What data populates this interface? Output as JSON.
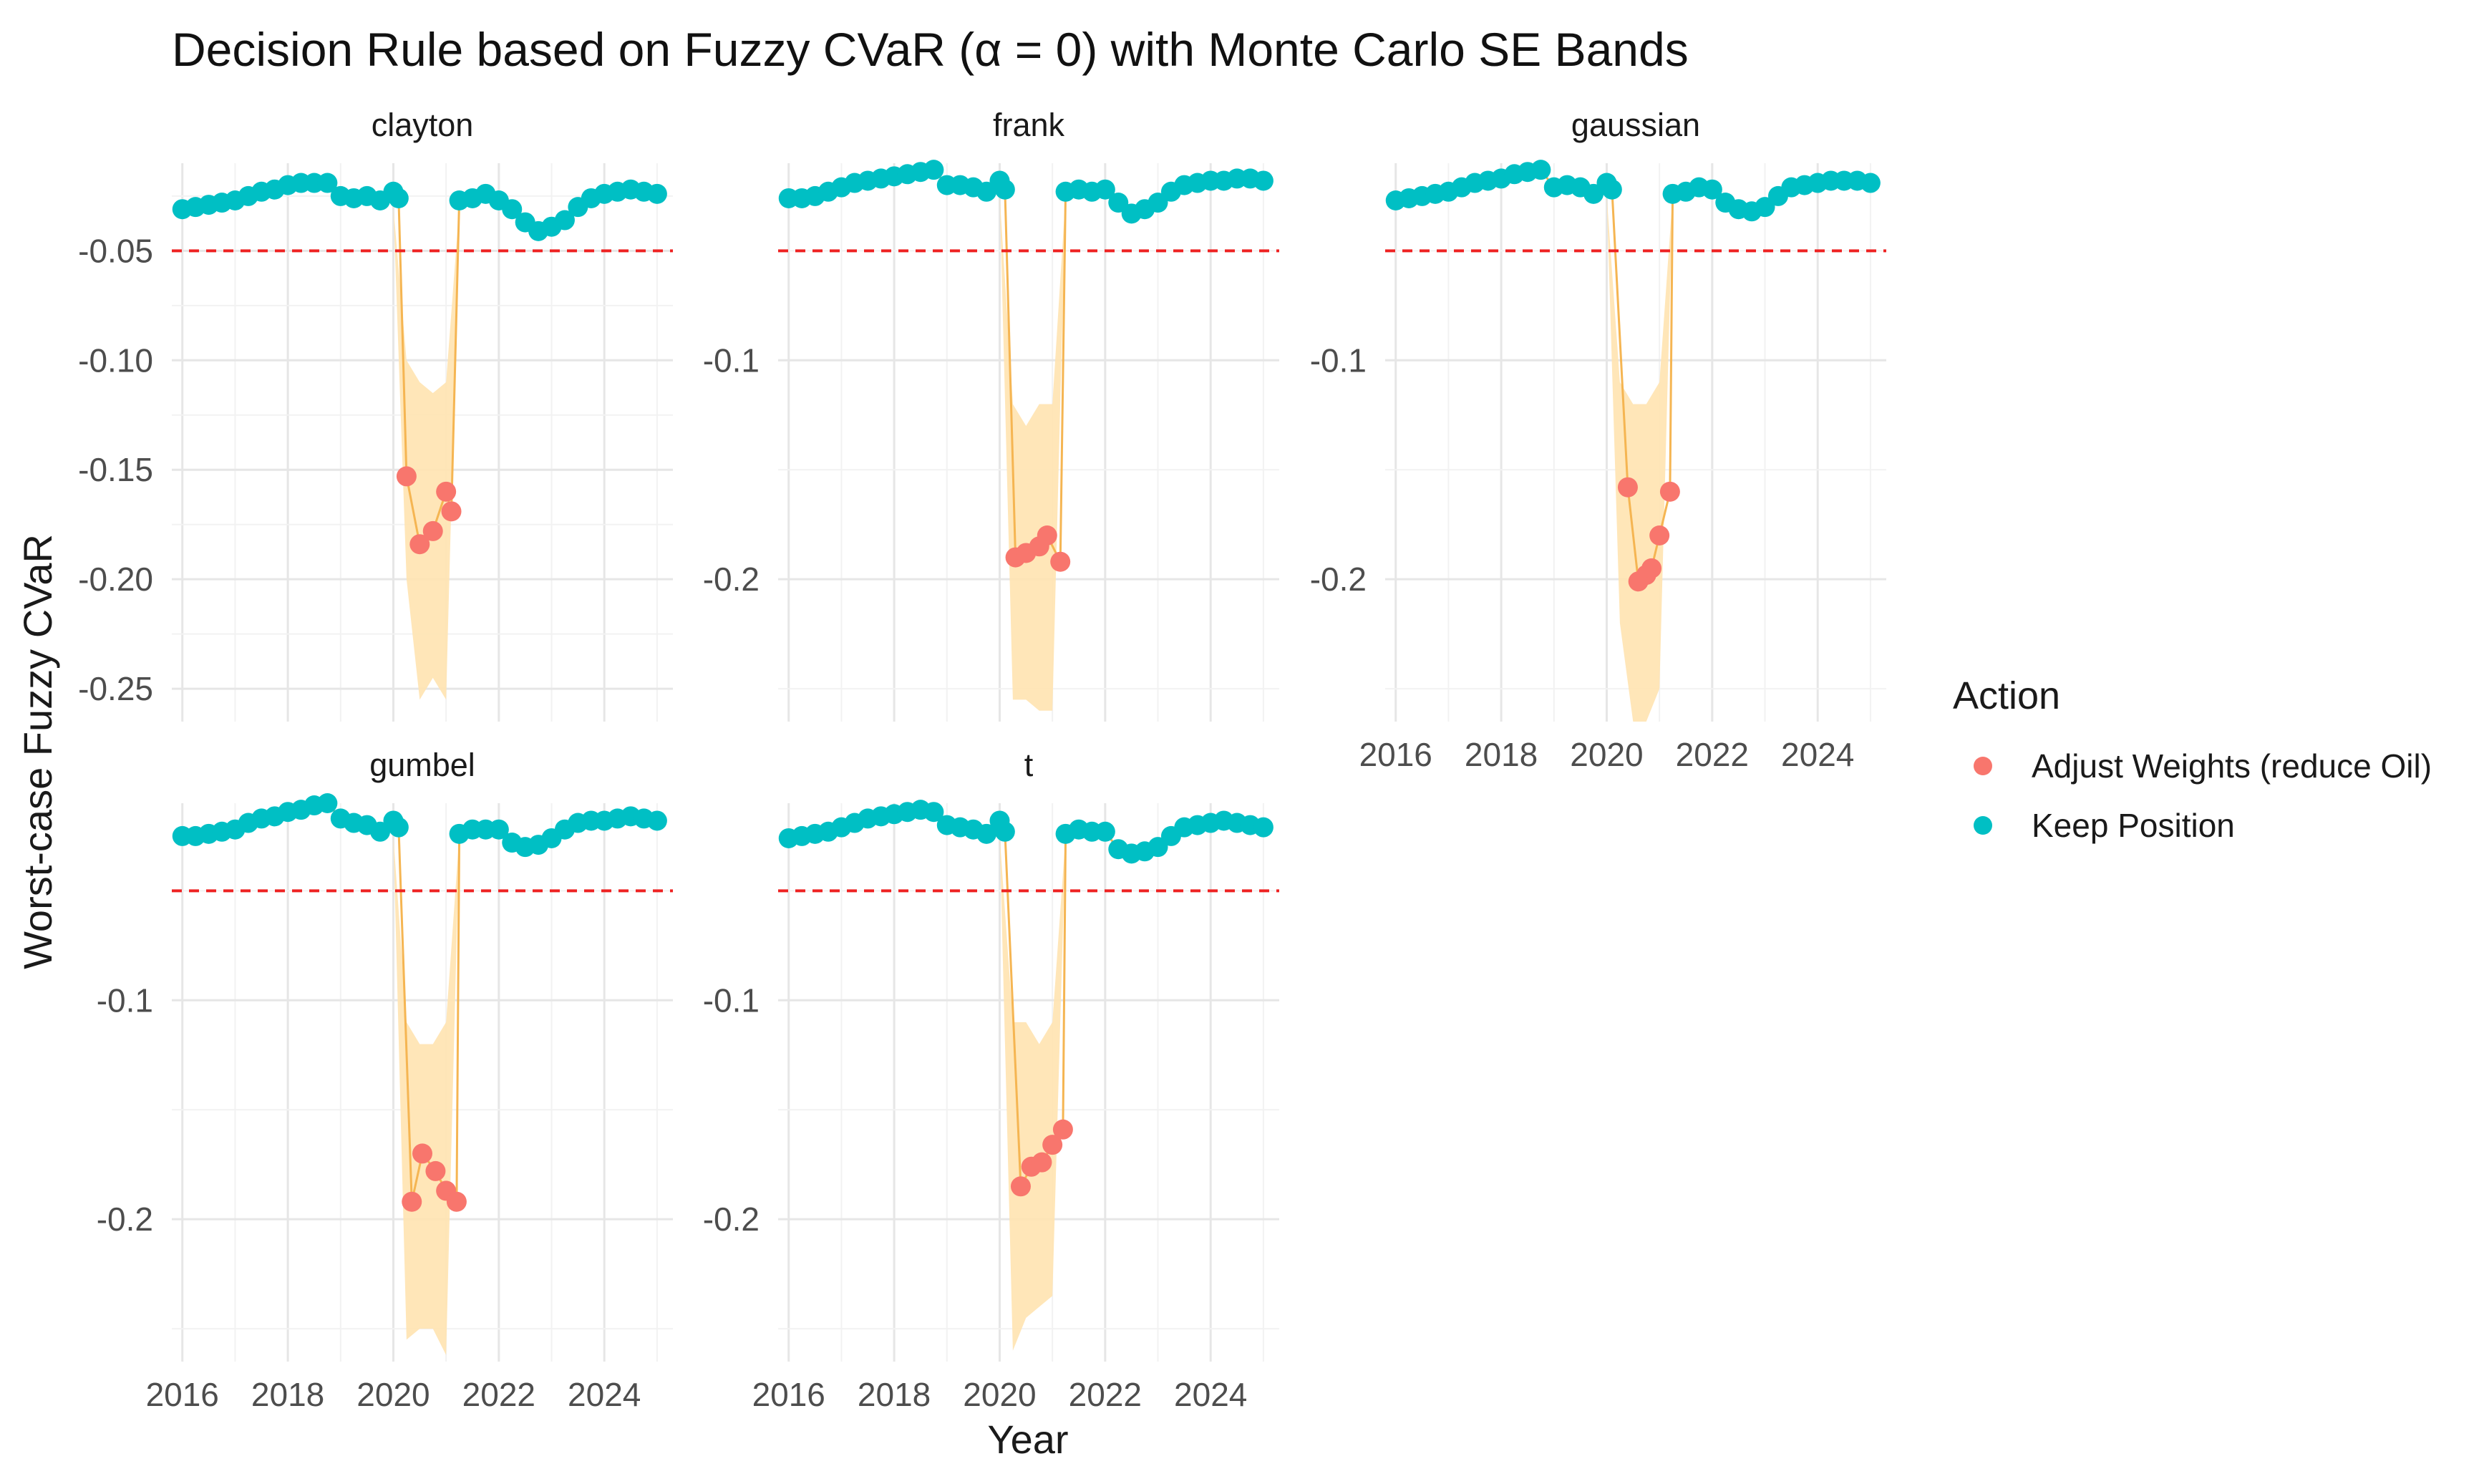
{
  "chart_data": {
    "type": "scatter",
    "title": "Decision Rule based on Fuzzy CVaR (α = 0) with Monte Carlo SE Bands",
    "xlabel": "Year",
    "ylabel": "Worst-case Fuzzy CVaR",
    "threshold": -0.05,
    "legend": {
      "title": "Action",
      "position": "right",
      "entries": [
        {
          "label": "Adjust Weights (reduce Oil)",
          "color": "#F8766D"
        },
        {
          "label": "Keep Position",
          "color": "#00BFC4"
        }
      ]
    },
    "colors": {
      "adjust": "#F8766D",
      "keep": "#00BFC4",
      "threshold": "#ee2222",
      "band": "#FFE3B0",
      "line": "#F5B552"
    },
    "panels": [
      {
        "name": "clayton",
        "xticks": [
          "2016",
          "2018",
          "2020",
          "2022",
          "2024"
        ],
        "yticks": [
          -0.05,
          -0.1,
          -0.15,
          -0.2,
          -0.25
        ],
        "ytick_labels": [
          "-0.05",
          "-0.10",
          "-0.15",
          "-0.20",
          "-0.25"
        ],
        "ylim": [
          -0.265,
          -0.01
        ],
        "keep": [
          [
            2016,
            -0.031
          ],
          [
            2016.25,
            -0.03
          ],
          [
            2016.5,
            -0.029
          ],
          [
            2016.75,
            -0.028
          ],
          [
            2017,
            -0.027
          ],
          [
            2017.25,
            -0.025
          ],
          [
            2017.5,
            -0.023
          ],
          [
            2017.75,
            -0.022
          ],
          [
            2018,
            -0.02
          ],
          [
            2018.25,
            -0.019
          ],
          [
            2018.5,
            -0.019
          ],
          [
            2018.75,
            -0.019
          ],
          [
            2019,
            -0.025
          ],
          [
            2019.25,
            -0.026
          ],
          [
            2019.5,
            -0.025
          ],
          [
            2019.75,
            -0.027
          ],
          [
            2020,
            -0.023
          ],
          [
            2020.1,
            -0.026
          ],
          [
            2021.25,
            -0.027
          ],
          [
            2021.5,
            -0.026
          ],
          [
            2021.75,
            -0.024
          ],
          [
            2022,
            -0.027
          ],
          [
            2022.25,
            -0.031
          ],
          [
            2022.5,
            -0.037
          ],
          [
            2022.75,
            -0.041
          ],
          [
            2023,
            -0.039
          ],
          [
            2023.25,
            -0.036
          ],
          [
            2023.5,
            -0.03
          ],
          [
            2023.75,
            -0.026
          ],
          [
            2024,
            -0.024
          ],
          [
            2024.25,
            -0.023
          ],
          [
            2024.5,
            -0.022
          ],
          [
            2024.75,
            -0.023
          ],
          [
            2025,
            -0.024
          ]
        ],
        "adjust": [
          [
            2020.25,
            -0.153
          ],
          [
            2020.5,
            -0.184
          ],
          [
            2020.75,
            -0.178
          ],
          [
            2021,
            -0.16
          ],
          [
            2021.1,
            -0.169
          ]
        ],
        "band": [
          [
            2020,
            -0.03,
            -0.03
          ],
          [
            2020.25,
            -0.1,
            -0.2
          ],
          [
            2020.5,
            -0.11,
            -0.255
          ],
          [
            2020.75,
            -0.115,
            -0.245
          ],
          [
            2021,
            -0.11,
            -0.255
          ],
          [
            2021.25,
            -0.03,
            -0.03
          ]
        ]
      },
      {
        "name": "frank",
        "xticks": [
          "2016",
          "2018",
          "2020",
          "2022",
          "2024"
        ],
        "yticks": [
          -0.1,
          -0.2
        ],
        "ytick_labels": [
          "-0.1",
          "-0.2"
        ],
        "ylim": [
          -0.265,
          -0.01
        ],
        "keep": [
          [
            2016,
            -0.026
          ],
          [
            2016.25,
            -0.026
          ],
          [
            2016.5,
            -0.025
          ],
          [
            2016.75,
            -0.023
          ],
          [
            2017,
            -0.021
          ],
          [
            2017.25,
            -0.019
          ],
          [
            2017.5,
            -0.018
          ],
          [
            2017.75,
            -0.017
          ],
          [
            2018,
            -0.016
          ],
          [
            2018.25,
            -0.015
          ],
          [
            2018.5,
            -0.014
          ],
          [
            2018.75,
            -0.013
          ],
          [
            2019,
            -0.02
          ],
          [
            2019.25,
            -0.02
          ],
          [
            2019.5,
            -0.021
          ],
          [
            2019.75,
            -0.023
          ],
          [
            2020,
            -0.018
          ],
          [
            2020.1,
            -0.022
          ],
          [
            2021.25,
            -0.023
          ],
          [
            2021.5,
            -0.022
          ],
          [
            2021.75,
            -0.023
          ],
          [
            2022,
            -0.022
          ],
          [
            2022.25,
            -0.028
          ],
          [
            2022.5,
            -0.033
          ],
          [
            2022.75,
            -0.031
          ],
          [
            2023,
            -0.028
          ],
          [
            2023.25,
            -0.023
          ],
          [
            2023.5,
            -0.02
          ],
          [
            2023.75,
            -0.019
          ],
          [
            2024,
            -0.018
          ],
          [
            2024.25,
            -0.018
          ],
          [
            2024.5,
            -0.017
          ],
          [
            2024.75,
            -0.017
          ],
          [
            2025,
            -0.018
          ]
        ],
        "adjust": [
          [
            2020.3,
            -0.19
          ],
          [
            2020.5,
            -0.188
          ],
          [
            2020.75,
            -0.185
          ],
          [
            2020.9,
            -0.18
          ],
          [
            2021.15,
            -0.192
          ]
        ],
        "band": [
          [
            2020,
            -0.025,
            -0.025
          ],
          [
            2020.25,
            -0.12,
            -0.255
          ],
          [
            2020.5,
            -0.13,
            -0.255
          ],
          [
            2020.75,
            -0.12,
            -0.26
          ],
          [
            2021,
            -0.12,
            -0.26
          ],
          [
            2021.25,
            -0.025,
            -0.025
          ]
        ]
      },
      {
        "name": "gaussian",
        "xticks": [
          "2016",
          "2018",
          "2020",
          "2022",
          "2024"
        ],
        "yticks": [
          -0.1,
          -0.2
        ],
        "ytick_labels": [
          "-0.1",
          "-0.2"
        ],
        "ylim": [
          -0.265,
          -0.01
        ],
        "keep": [
          [
            2016,
            -0.027
          ],
          [
            2016.25,
            -0.026
          ],
          [
            2016.5,
            -0.025
          ],
          [
            2016.75,
            -0.024
          ],
          [
            2017,
            -0.023
          ],
          [
            2017.25,
            -0.021
          ],
          [
            2017.5,
            -0.019
          ],
          [
            2017.75,
            -0.018
          ],
          [
            2018,
            -0.017
          ],
          [
            2018.25,
            -0.015
          ],
          [
            2018.5,
            -0.014
          ],
          [
            2018.75,
            -0.013
          ],
          [
            2019,
            -0.021
          ],
          [
            2019.25,
            -0.02
          ],
          [
            2019.5,
            -0.021
          ],
          [
            2019.75,
            -0.024
          ],
          [
            2020,
            -0.019
          ],
          [
            2020.1,
            -0.022
          ],
          [
            2021.25,
            -0.024
          ],
          [
            2021.5,
            -0.023
          ],
          [
            2021.75,
            -0.021
          ],
          [
            2022,
            -0.022
          ],
          [
            2022.25,
            -0.028
          ],
          [
            2022.5,
            -0.031
          ],
          [
            2022.75,
            -0.032
          ],
          [
            2023,
            -0.03
          ],
          [
            2023.25,
            -0.025
          ],
          [
            2023.5,
            -0.021
          ],
          [
            2023.75,
            -0.02
          ],
          [
            2024,
            -0.019
          ],
          [
            2024.25,
            -0.018
          ],
          [
            2024.5,
            -0.018
          ],
          [
            2024.75,
            -0.018
          ],
          [
            2025,
            -0.019
          ]
        ],
        "adjust": [
          [
            2020.4,
            -0.158
          ],
          [
            2020.6,
            -0.201
          ],
          [
            2020.75,
            -0.198
          ],
          [
            2020.85,
            -0.195
          ],
          [
            2021,
            -0.18
          ],
          [
            2021.2,
            -0.16
          ]
        ],
        "band": [
          [
            2020,
            -0.025,
            -0.025
          ],
          [
            2020.25,
            -0.11,
            -0.22
          ],
          [
            2020.5,
            -0.12,
            -0.265
          ],
          [
            2020.75,
            -0.12,
            -0.265
          ],
          [
            2021,
            -0.11,
            -0.25
          ],
          [
            2021.25,
            -0.025,
            -0.025
          ]
        ]
      },
      {
        "name": "gumbel",
        "xticks": [
          "2016",
          "2018",
          "2020",
          "2022",
          "2024"
        ],
        "yticks": [
          -0.1,
          -0.2
        ],
        "ytick_labels": [
          "-0.1",
          "-0.2"
        ],
        "ylim": [
          -0.265,
          -0.01
        ],
        "keep": [
          [
            2016,
            -0.025
          ],
          [
            2016.25,
            -0.025
          ],
          [
            2016.5,
            -0.024
          ],
          [
            2016.75,
            -0.023
          ],
          [
            2017,
            -0.022
          ],
          [
            2017.25,
            -0.019
          ],
          [
            2017.5,
            -0.017
          ],
          [
            2017.75,
            -0.016
          ],
          [
            2018,
            -0.014
          ],
          [
            2018.25,
            -0.013
          ],
          [
            2018.5,
            -0.011
          ],
          [
            2018.75,
            -0.01
          ],
          [
            2019,
            -0.017
          ],
          [
            2019.25,
            -0.019
          ],
          [
            2019.5,
            -0.02
          ],
          [
            2019.75,
            -0.023
          ],
          [
            2020,
            -0.018
          ],
          [
            2020.1,
            -0.021
          ],
          [
            2021.25,
            -0.024
          ],
          [
            2021.5,
            -0.022
          ],
          [
            2021.75,
            -0.022
          ],
          [
            2022,
            -0.022
          ],
          [
            2022.25,
            -0.028
          ],
          [
            2022.5,
            -0.03
          ],
          [
            2022.75,
            -0.029
          ],
          [
            2023,
            -0.026
          ],
          [
            2023.25,
            -0.022
          ],
          [
            2023.5,
            -0.019
          ],
          [
            2023.75,
            -0.018
          ],
          [
            2024,
            -0.018
          ],
          [
            2024.25,
            -0.017
          ],
          [
            2024.5,
            -0.016
          ],
          [
            2024.75,
            -0.017
          ],
          [
            2025,
            -0.018
          ]
        ],
        "adjust": [
          [
            2020.35,
            -0.192
          ],
          [
            2020.55,
            -0.17
          ],
          [
            2020.8,
            -0.178
          ],
          [
            2021,
            -0.187
          ],
          [
            2021.2,
            -0.192
          ]
        ],
        "band": [
          [
            2020,
            -0.025,
            -0.025
          ],
          [
            2020.25,
            -0.11,
            -0.255
          ],
          [
            2020.5,
            -0.12,
            -0.25
          ],
          [
            2020.75,
            -0.12,
            -0.25
          ],
          [
            2021,
            -0.11,
            -0.262
          ],
          [
            2021.25,
            -0.025,
            -0.025
          ]
        ]
      },
      {
        "name": "t",
        "xticks": [
          "2016",
          "2018",
          "2020",
          "2022",
          "2024"
        ],
        "yticks": [
          -0.1,
          -0.2
        ],
        "ytick_labels": [
          "-0.1",
          "-0.2"
        ],
        "ylim": [
          -0.265,
          -0.01
        ],
        "keep": [
          [
            2016,
            -0.026
          ],
          [
            2016.25,
            -0.025
          ],
          [
            2016.5,
            -0.024
          ],
          [
            2016.75,
            -0.023
          ],
          [
            2017,
            -0.021
          ],
          [
            2017.25,
            -0.019
          ],
          [
            2017.5,
            -0.017
          ],
          [
            2017.75,
            -0.016
          ],
          [
            2018,
            -0.015
          ],
          [
            2018.25,
            -0.014
          ],
          [
            2018.5,
            -0.013
          ],
          [
            2018.75,
            -0.014
          ],
          [
            2019,
            -0.02
          ],
          [
            2019.25,
            -0.021
          ],
          [
            2019.5,
            -0.022
          ],
          [
            2019.75,
            -0.024
          ],
          [
            2020,
            -0.018
          ],
          [
            2020.1,
            -0.023
          ],
          [
            2021.25,
            -0.024
          ],
          [
            2021.5,
            -0.022
          ],
          [
            2021.75,
            -0.023
          ],
          [
            2022,
            -0.023
          ],
          [
            2022.25,
            -0.031
          ],
          [
            2022.5,
            -0.033
          ],
          [
            2022.75,
            -0.032
          ],
          [
            2023,
            -0.03
          ],
          [
            2023.25,
            -0.025
          ],
          [
            2023.5,
            -0.021
          ],
          [
            2023.75,
            -0.02
          ],
          [
            2024,
            -0.019
          ],
          [
            2024.25,
            -0.018
          ],
          [
            2024.5,
            -0.019
          ],
          [
            2024.75,
            -0.02
          ],
          [
            2025,
            -0.021
          ]
        ],
        "adjust": [
          [
            2020.4,
            -0.185
          ],
          [
            2020.6,
            -0.176
          ],
          [
            2020.8,
            -0.174
          ],
          [
            2021,
            -0.166
          ],
          [
            2021.2,
            -0.159
          ]
        ],
        "band": [
          [
            2020,
            -0.025,
            -0.025
          ],
          [
            2020.25,
            -0.11,
            -0.26
          ],
          [
            2020.5,
            -0.11,
            -0.245
          ],
          [
            2020.75,
            -0.12,
            -0.24
          ],
          [
            2021,
            -0.11,
            -0.235
          ],
          [
            2021.25,
            -0.025,
            -0.025
          ]
        ]
      }
    ]
  }
}
